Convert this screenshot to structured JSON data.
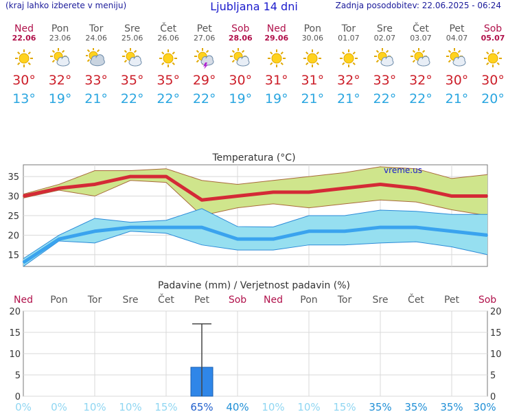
{
  "header": {
    "hint": "(kraj lahko izberete v meniju)",
    "title": "Ljubljana 14 dni",
    "updated": "Zadnja posodobitev: 22.06.2025 - 06:24"
  },
  "days": [
    {
      "name": "Ned",
      "date": "22.06",
      "weekend": true,
      "icon": "sun-icon",
      "tmax": "30°",
      "tmin": "13°"
    },
    {
      "name": "Pon",
      "date": "23.06",
      "weekend": false,
      "icon": "sun-cloud-icon",
      "tmax": "32°",
      "tmin": "19°"
    },
    {
      "name": "Tor",
      "date": "24.06",
      "weekend": false,
      "icon": "cloud-sun-icon",
      "tmax": "33°",
      "tmin": "21°"
    },
    {
      "name": "Sre",
      "date": "25.06",
      "weekend": false,
      "icon": "sun-cloud-icon",
      "tmax": "35°",
      "tmin": "22°"
    },
    {
      "name": "Čet",
      "date": "26.06",
      "weekend": false,
      "icon": "sun-icon",
      "tmax": "35°",
      "tmin": "22°"
    },
    {
      "name": "Pet",
      "date": "27.06",
      "weekend": false,
      "icon": "sun-storm-icon",
      "tmax": "29°",
      "tmin": "22°"
    },
    {
      "name": "Sob",
      "date": "28.06",
      "weekend": true,
      "icon": "sun-cloud-icon",
      "tmax": "30°",
      "tmin": "19°"
    },
    {
      "name": "Ned",
      "date": "29.06",
      "weekend": true,
      "icon": "sun-icon",
      "tmax": "31°",
      "tmin": "19°"
    },
    {
      "name": "Pon",
      "date": "30.06",
      "weekend": false,
      "icon": "sun-icon",
      "tmax": "31°",
      "tmin": "21°"
    },
    {
      "name": "Tor",
      "date": "01.07",
      "weekend": false,
      "icon": "sun-icon",
      "tmax": "32°",
      "tmin": "21°"
    },
    {
      "name": "Sre",
      "date": "02.07",
      "weekend": false,
      "icon": "sun-cloud-icon",
      "tmax": "33°",
      "tmin": "22°"
    },
    {
      "name": "Čet",
      "date": "03.07",
      "weekend": false,
      "icon": "sun-cloud-icon",
      "tmax": "32°",
      "tmin": "22°"
    },
    {
      "name": "Pet",
      "date": "04.07",
      "weekend": false,
      "icon": "sun-cloud-icon",
      "tmax": "30°",
      "tmin": "21°"
    },
    {
      "name": "Sob",
      "date": "05.07",
      "weekend": true,
      "icon": "sun-icon",
      "tmax": "30°",
      "tmin": "20°"
    }
  ],
  "colors": {
    "max_line": "#d42a36",
    "max_band": "#cfe58c",
    "max_band_edge": "#a86a3a",
    "min_line": "#3aa3ee",
    "min_band": "#96dff0",
    "min_band_edge": "#2a8ad8",
    "precip_bar": "#2f86e8",
    "weekend": "#b0104a",
    "prob": "#8fd6f2",
    "prob_strong": "#1f8fd6",
    "prob_max": "#1f5fcc"
  },
  "chart_data": [
    {
      "type": "line",
      "title": "Temperatura (°C)",
      "watermark": "vreme.us",
      "x": [
        "22.06",
        "23.06",
        "24.06",
        "25.06",
        "26.06",
        "27.06",
        "28.06",
        "29.06",
        "30.06",
        "01.07",
        "02.07",
        "03.07",
        "04.07",
        "05.07"
      ],
      "ylim": [
        12,
        38
      ],
      "yticks": [
        15,
        20,
        25,
        30,
        35
      ],
      "grid": true,
      "series": [
        {
          "values": [
            30,
            32,
            33,
            35,
            35,
            29,
            30,
            31,
            31,
            32,
            33,
            32,
            30,
            30
          ]
        },
        {
          "values": [
            30.5,
            33,
            36.5,
            36.5,
            37,
            34,
            33,
            34,
            35,
            36,
            37.5,
            37,
            34.5,
            35.5
          ]
        },
        {
          "values": [
            29.5,
            31.5,
            30,
            34,
            33.5,
            25,
            27,
            28,
            27,
            28,
            29,
            28.5,
            26.5,
            25
          ]
        },
        {
          "values": [
            13,
            19,
            21,
            22,
            22,
            22,
            19,
            19,
            21,
            21,
            22,
            22,
            21,
            20
          ]
        },
        {
          "values": [
            14,
            20,
            24.3,
            23.3,
            23.8,
            26.8,
            22.2,
            22.1,
            25,
            25,
            26.4,
            26.1,
            25.3,
            25.3
          ]
        },
        {
          "values": [
            12,
            18.5,
            18,
            21,
            20.5,
            17.5,
            16.2,
            16.2,
            17.5,
            17.5,
            18,
            18.3,
            17,
            15
          ]
        }
      ]
    },
    {
      "type": "bar",
      "title": "Padavine (mm) / Verjetnost padavin (%)",
      "categories": [
        "Ned",
        "Pon",
        "Tor",
        "Sre",
        "Čet",
        "Pet",
        "Sob",
        "Ned",
        "Pon",
        "Tor",
        "Sre",
        "Čet",
        "Pet",
        "Sob"
      ],
      "values": [
        0,
        0,
        0,
        0,
        0,
        6.8,
        0,
        0,
        0,
        0,
        0,
        0,
        0,
        0
      ],
      "range_max": [
        0,
        0,
        0,
        0,
        0,
        17,
        0,
        0,
        0,
        0,
        0,
        0,
        0,
        0
      ],
      "probability": [
        "0%",
        "0%",
        "10%",
        "10%",
        "15%",
        "65%",
        "40%",
        "10%",
        "10%",
        "15%",
        "35%",
        "35%",
        "35%",
        "30%"
      ],
      "probability_values": [
        0,
        0,
        10,
        10,
        15,
        65,
        40,
        10,
        10,
        15,
        35,
        35,
        35,
        30
      ],
      "ylim": [
        0,
        20
      ],
      "yticks": [
        0,
        5,
        10,
        15,
        20
      ],
      "grid": true
    }
  ]
}
